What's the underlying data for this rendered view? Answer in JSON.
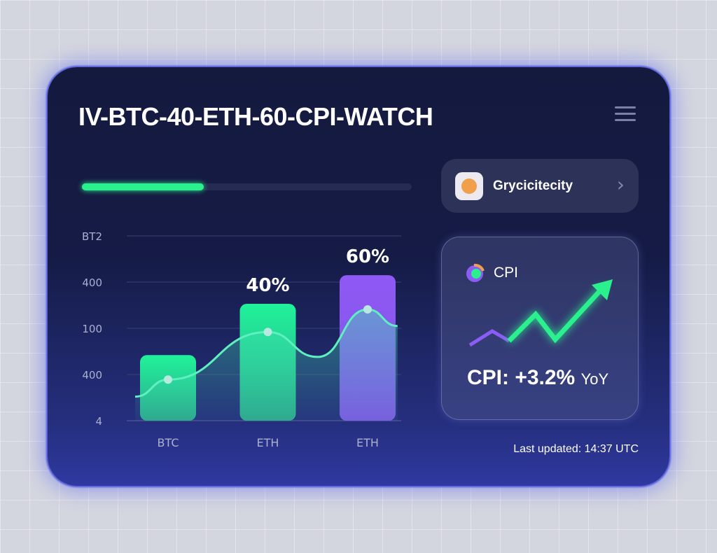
{
  "title": "IV-BTC-40-ETH-60-CPI-WATCH",
  "progress_percent": 37,
  "asset_pill": {
    "label": "Grycicitecity",
    "icon": "coin-icon"
  },
  "cpi_card": {
    "label": "CPI",
    "value": "CPI: +3.2%",
    "suffix": "YoY"
  },
  "last_updated": "Last updated: 14:37 UTC",
  "colors": {
    "green": "#2af08e",
    "purple": "#8b5cf6",
    "card": "#141a3e"
  },
  "chart_data": {
    "type": "bar",
    "categories": [
      "BTC",
      "ETH",
      "ETH"
    ],
    "values": [
      1.42,
      2.53,
      3.15
    ],
    "data_labels": [
      "",
      "40%",
      "60%"
    ],
    "y_tick_labels": [
      "4",
      "400",
      "100",
      "400",
      "BT2"
    ],
    "ylim": [
      0,
      4
    ],
    "grid": true,
    "line_series": {
      "x": [
        -0.33,
        0,
        1,
        1.5,
        2,
        2.3
      ],
      "y": [
        0.52,
        0.89,
        1.92,
        1.38,
        2.41,
        2.05
      ]
    }
  }
}
